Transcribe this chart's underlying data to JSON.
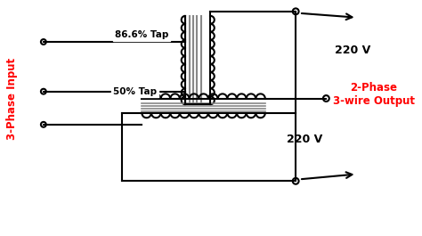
{
  "bg_color": "#ffffff",
  "line_color": "#000000",
  "red_color": "#ff0000",
  "gray_color": "#888888",
  "label_3phase": "3-Phase Input",
  "label_2phase": "2-Phase\n3-wire Output",
  "label_86": "86.6% Tap",
  "label_50": "50% Tap",
  "label_220_top": "220 V",
  "label_220_bot": "220 V",
  "figsize": [
    4.74,
    2.65
  ],
  "dpi": 100
}
